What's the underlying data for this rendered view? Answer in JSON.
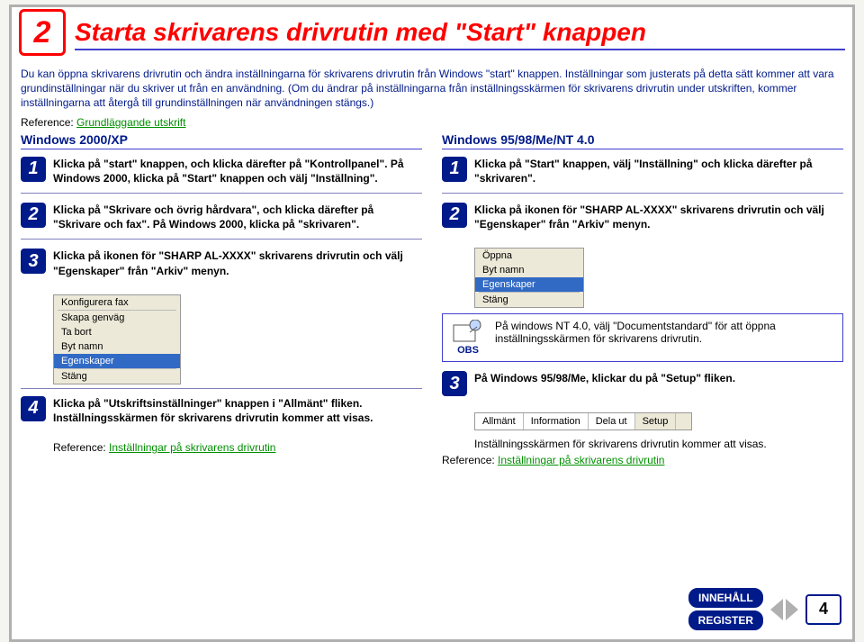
{
  "badge": "2",
  "title": "Starta skrivarens drivrutin med \"Start\" knappen",
  "intro": "Du kan öppna skrivarens drivrutin och ändra inställningarna för skrivarens drivrutin från Windows \"start\" knappen. Inställningar som justerats på detta sätt kommer att vara grundinställningar när du skriver ut från en användning. (Om du ändrar på inställningarna från inställningsskärmen för skrivarens drivrutin under utskriften, kommer inställningarna att återgå till grundinställningen när användningen stängs.)",
  "refLabel": "Reference:",
  "refLink1": "Grundläggande utskrift",
  "left": {
    "os": "Windows 2000/XP",
    "s1": "Klicka på \"start\" knappen, och klicka därefter på \"Kontrollpanel\".\nPå Windows 2000, klicka på \"Start\" knappen och välj \"Inställning\".",
    "s2": "Klicka på \"Skrivare och övrig hårdvara\", och klicka därefter på \"Skrivare och fax\".\nPå Windows 2000, klicka på \"skrivaren\".",
    "s3": "Klicka på ikonen för \"SHARP AL-XXXX\" skrivarens drivrutin och välj \"Egenskaper\" från \"Arkiv\" menyn.",
    "menu": [
      "Konfigurera fax",
      "—",
      "Skapa genväg",
      "Ta bort",
      "Byt namn",
      "Egenskaper",
      "—",
      "Stäng"
    ],
    "menuSel": "Egenskaper",
    "s4": "Klicka på \"Utskriftsinställninger\" knappen i \"Allmänt\" fliken.\nInställningsskärmen för skrivarens drivrutin kommer att visas.",
    "refLink": "Inställningar på skrivarens drivrutin"
  },
  "right": {
    "os": "Windows 95/98/Me/NT 4.0",
    "s1": "Klicka på \"Start\" knappen, välj \"Inställning\" och klicka därefter på \"skrivaren\".",
    "s2": "Klicka på ikonen för \"SHARP AL-XXXX\" skrivarens drivrutin och välj \"Egenskaper\" från \"Arkiv\" menyn.",
    "menu": [
      "Öppna",
      "Byt namn",
      "Egenskaper",
      "—",
      "Stäng"
    ],
    "menuSel": "Egenskaper",
    "obs": "På windows NT 4.0, välj \"Documentstandard\" för att öppna inställningsskärmen för skrivarens drivrutin.",
    "obsLabel": "OBS",
    "s3": "På Windows 95/98/Me, klickar du på \"Setup\" fliken.",
    "tabs": [
      "Allmänt",
      "Information",
      "Dela ut",
      "Setup"
    ],
    "tabAct": "Setup",
    "s3b": "Inställningsskärmen för skrivarens drivrutin kommer att visas.",
    "refLink": "Inställningar på skrivarens drivrutin"
  },
  "nav": {
    "b1": "INNEHÅLL",
    "b2": "REGISTER",
    "page": "4"
  }
}
